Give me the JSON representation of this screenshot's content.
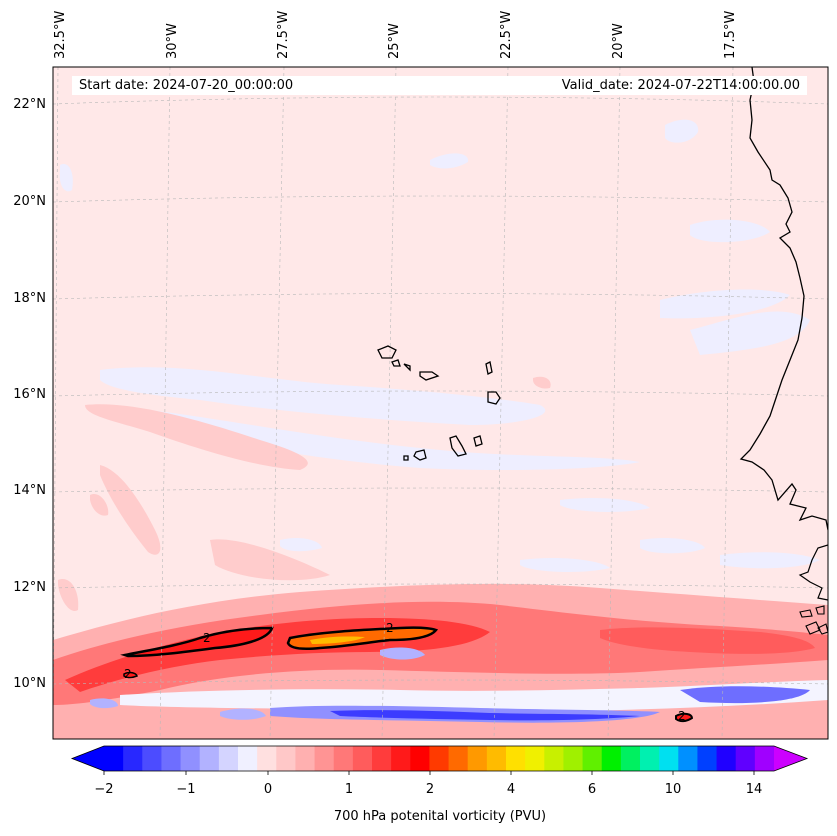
{
  "header": {
    "start_date": "Start date: 2024-07-20_00:00:00",
    "valid_date": "Valid_date: 2024-07-22T14:00:00.00"
  },
  "longitude_labels": [
    "32.5°W",
    "30°W",
    "27.5°W",
    "25°W",
    "22.5°W",
    "20°W",
    "17.5°W"
  ],
  "latitude_labels": [
    "22°N",
    "20°N",
    "18°N",
    "16°N",
    "14°N",
    "12°N",
    "10°N"
  ],
  "map": {
    "field": "700 hPa potential vorticity",
    "contour_labels": [
      "2",
      "2",
      "2",
      "2"
    ],
    "background_color": "#ffe8e8"
  },
  "colorbar": {
    "label": "700 hPa potenital vorticity (PVU)",
    "ticks": [
      "−2",
      "−1",
      "0",
      "1",
      "2",
      "4",
      "6",
      "10",
      "14"
    ],
    "colors": [
      "#0000ff",
      "#2828ff",
      "#4c4cff",
      "#6e6eff",
      "#9090ff",
      "#b2b2ff",
      "#d4d4ff",
      "#f0f0ff",
      "#ffe0e0",
      "#ffc8c8",
      "#ffb0b0",
      "#ff9494",
      "#ff7878",
      "#ff5c5c",
      "#ff3c3c",
      "#ff1a1a",
      "#ff0000",
      "#ff3a00",
      "#ff6a00",
      "#ff9900",
      "#ffbb00",
      "#ffe000",
      "#f0f000",
      "#c8f000",
      "#a0f000",
      "#60f000",
      "#00f000",
      "#00f060",
      "#00f0b0",
      "#00e0f0",
      "#0090ff",
      "#0040ff",
      "#2000ff",
      "#6000ff",
      "#a000ff"
    ],
    "left_arrow_color": "#0000ff",
    "right_arrow_color": "#cc00ff"
  }
}
